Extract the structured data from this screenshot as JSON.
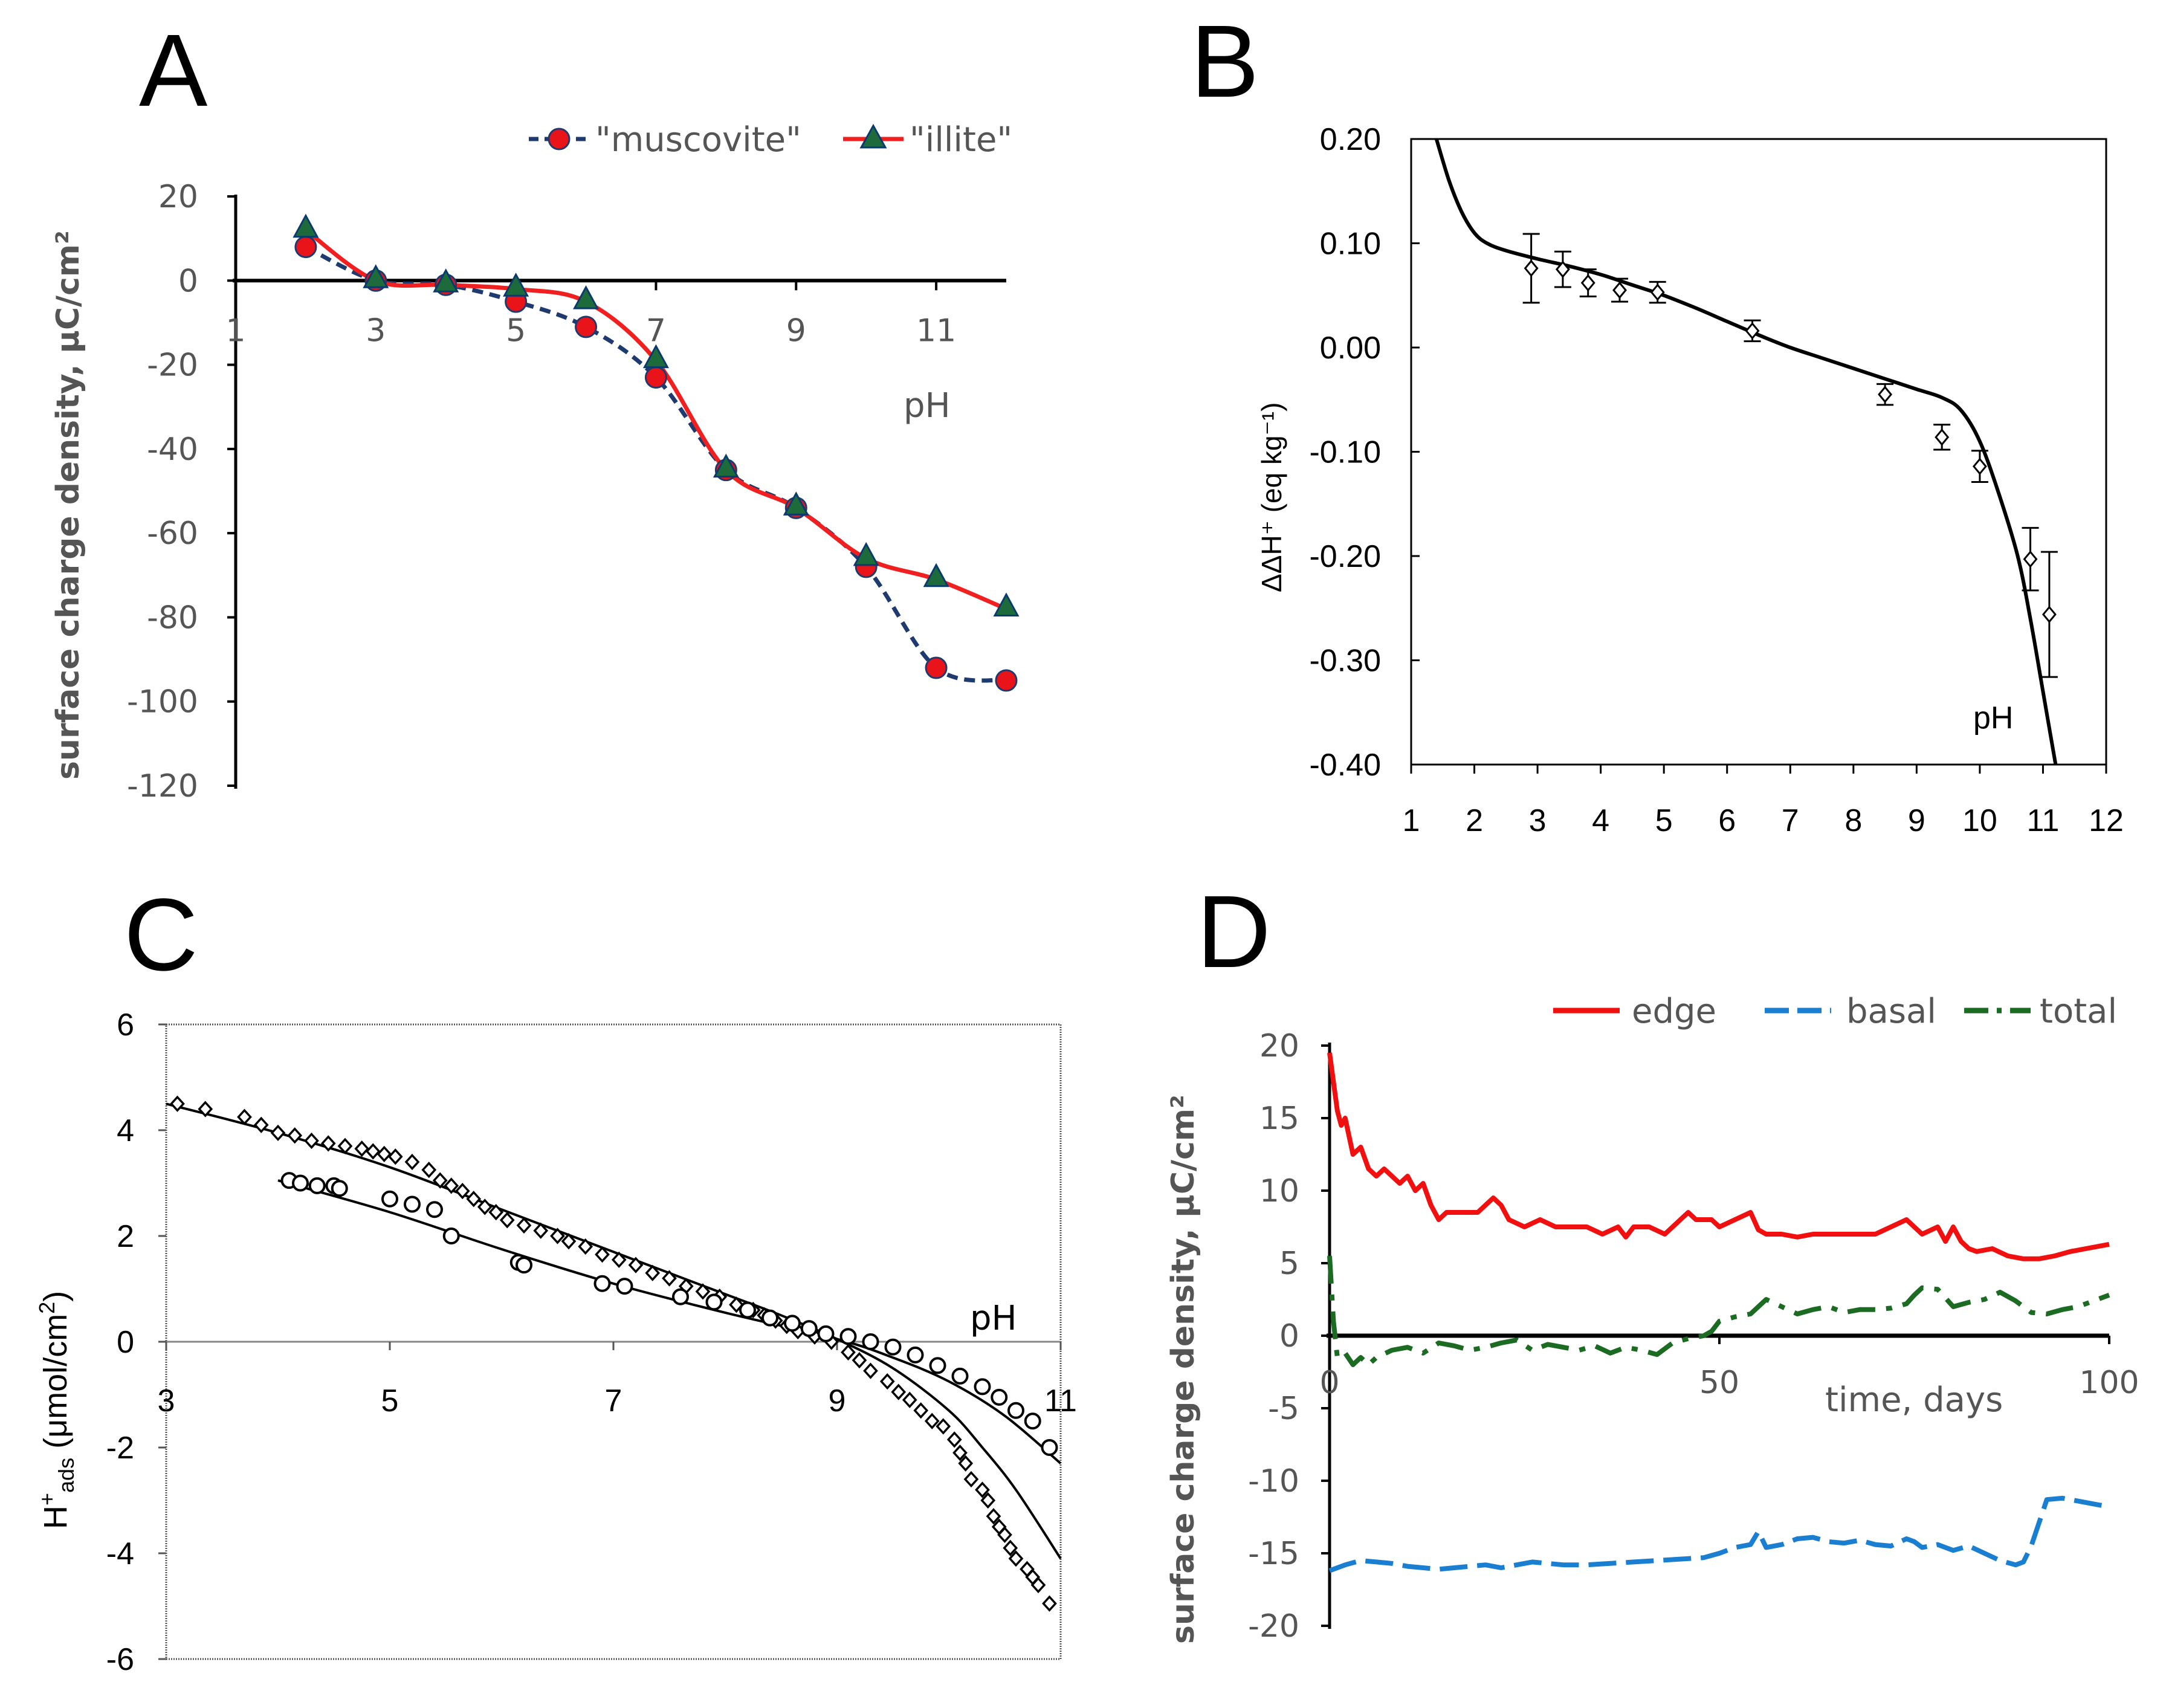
{
  "panels": {
    "A": {
      "letter": "A"
    },
    "B": {
      "letter": "B"
    },
    "C": {
      "letter": "C"
    },
    "D": {
      "letter": "D"
    }
  },
  "chart_data": [
    {
      "id": "A",
      "type": "line",
      "title": "",
      "xlabel": "pH",
      "ylabel": "surface charge density, μC/cm²",
      "xlim": [
        1,
        12
      ],
      "ylim": [
        -120,
        20
      ],
      "xticks": [
        1,
        3,
        5,
        7,
        9,
        11
      ],
      "yticks": [
        20,
        0,
        -20,
        -40,
        -60,
        -80,
        -100,
        -120
      ],
      "ytick_labels": [
        "20",
        "0",
        "-20",
        "-40",
        "-60",
        "-80",
        "-100",
        "-120"
      ],
      "legend_position": "top-right",
      "series": [
        {
          "name": "\"muscovite\"",
          "color": "#1f3a6e",
          "marker_color": "#e8141a",
          "marker": "circle",
          "style": "dashed",
          "x": [
            2,
            3,
            4,
            5,
            6,
            7,
            8,
            9,
            10,
            11,
            12
          ],
          "y": [
            8,
            0,
            -1,
            -5,
            -11,
            -23,
            -45,
            -54,
            -68,
            -92,
            -95
          ]
        },
        {
          "name": "\"illite\"",
          "color": "#f02020",
          "marker_color": "#1d6b3a",
          "marker": "triangle",
          "style": "solid",
          "x": [
            2,
            3,
            4,
            5,
            6,
            7,
            8,
            9,
            10,
            11,
            12
          ],
          "y": [
            12,
            0,
            -1,
            -2,
            -5,
            -19,
            -45,
            -54,
            -66,
            -71,
            -78
          ]
        }
      ]
    },
    {
      "id": "B",
      "type": "line",
      "xlabel": "pH",
      "ylabel": "ΔΔH⁺ (eq kg⁻¹)",
      "xlim": [
        1,
        12
      ],
      "ylim": [
        -0.4,
        0.2
      ],
      "xticks": [
        1,
        2,
        3,
        4,
        5,
        6,
        7,
        8,
        9,
        10,
        11,
        12
      ],
      "yticks": [
        0.2,
        0.1,
        0.0,
        -0.1,
        -0.2,
        -0.3,
        -0.4
      ],
      "ytick_labels": [
        "0.20",
        "0.10",
        "0.00",
        "-0.10",
        "-0.20",
        "-0.30",
        "-0.40"
      ],
      "model_curve": {
        "x": [
          1.4,
          1.6,
          1.8,
          2.0,
          2.2,
          2.5,
          3.0,
          3.5,
          4.0,
          4.5,
          5.0,
          5.5,
          6.0,
          6.5,
          7.0,
          7.5,
          8.0,
          8.5,
          9.0,
          9.4,
          9.7,
          10.0,
          10.3,
          10.6,
          10.8,
          11.0,
          11.2
        ],
        "y": [
          0.2,
          0.16,
          0.13,
          0.11,
          0.1,
          0.093,
          0.085,
          0.078,
          0.07,
          0.06,
          0.05,
          0.038,
          0.025,
          0.012,
          0.0,
          -0.01,
          -0.02,
          -0.03,
          -0.04,
          -0.048,
          -0.06,
          -0.09,
          -0.14,
          -0.2,
          -0.26,
          -0.33,
          -0.4
        ]
      },
      "points": {
        "x": [
          2.9,
          3.4,
          3.8,
          4.3,
          4.9,
          6.4,
          8.5,
          9.4,
          10.0,
          10.8,
          11.1
        ],
        "y": [
          0.076,
          0.075,
          0.062,
          0.055,
          0.053,
          0.016,
          -0.045,
          -0.086,
          -0.114,
          -0.203,
          -0.256
        ],
        "err": [
          0.033,
          0.017,
          0.013,
          0.011,
          0.01,
          0.01,
          0.01,
          0.012,
          0.015,
          0.03,
          0.06
        ]
      }
    },
    {
      "id": "C",
      "type": "scatter",
      "xlabel": "pH",
      "ylabel": "H⁺ads (μmol/cm²)",
      "ylabel_main": "H",
      "ylabel_sup": "+",
      "ylabel_sub": "ads",
      "ylabel_rest": " (μmol/cm",
      "ylabel_sup2": "2",
      "ylabel_close": ")",
      "xlim": [
        3,
        11
      ],
      "ylim": [
        -6,
        6
      ],
      "xticks": [
        3,
        5,
        7,
        9,
        11
      ],
      "yticks": [
        6,
        4,
        2,
        0,
        -2,
        -4,
        -6
      ],
      "ytick_labels": [
        "6",
        "4",
        "2",
        "0",
        "-2",
        "-4",
        "-6"
      ],
      "series": [
        {
          "name": "diamonds",
          "marker": "diamond",
          "x": [
            3.1,
            3.35,
            3.7,
            3.85,
            4.0,
            4.15,
            4.3,
            4.45,
            4.6,
            4.75,
            4.85,
            4.95,
            5.05,
            5.2,
            5.35,
            5.45,
            5.55,
            5.65,
            5.75,
            5.85,
            5.95,
            6.05,
            6.2,
            6.35,
            6.5,
            6.6,
            6.75,
            6.9,
            7.05,
            7.2,
            7.35,
            7.5,
            7.65,
            7.8,
            7.95,
            8.1,
            8.25,
            8.35,
            8.45,
            8.55,
            8.65,
            8.8,
            8.95,
            9.1,
            9.2,
            9.3,
            9.45,
            9.55,
            9.65,
            9.75,
            9.85,
            9.95,
            10.05,
            10.1,
            10.15,
            10.2,
            10.3,
            10.35,
            10.4,
            10.45,
            10.5,
            10.55,
            10.6,
            10.7,
            10.75,
            10.8,
            10.9
          ],
          "y": [
            4.5,
            4.4,
            4.25,
            4.1,
            3.95,
            3.9,
            3.8,
            3.75,
            3.7,
            3.65,
            3.6,
            3.55,
            3.5,
            3.4,
            3.25,
            3.05,
            2.95,
            2.85,
            2.7,
            2.55,
            2.45,
            2.3,
            2.2,
            2.1,
            2.0,
            1.9,
            1.8,
            1.65,
            1.55,
            1.45,
            1.3,
            1.2,
            1.05,
            0.95,
            0.85,
            0.7,
            0.6,
            0.5,
            0.4,
            0.3,
            0.2,
            0.1,
            0.0,
            -0.2,
            -0.35,
            -0.55,
            -0.75,
            -0.95,
            -1.1,
            -1.3,
            -1.5,
            -1.6,
            -1.85,
            -2.1,
            -2.3,
            -2.6,
            -2.8,
            -3.0,
            -3.3,
            -3.5,
            -3.65,
            -3.9,
            -4.1,
            -4.3,
            -4.45,
            -4.6,
            -4.95
          ]
        },
        {
          "name": "circles",
          "marker": "circle",
          "x": [
            4.1,
            4.2,
            4.35,
            4.5,
            4.55,
            5.0,
            5.2,
            5.4,
            5.55,
            6.15,
            6.2,
            6.9,
            7.1,
            7.6,
            7.9,
            8.2,
            8.4,
            8.6,
            8.75,
            8.9,
            9.1,
            9.3,
            9.5,
            9.7,
            9.9,
            10.1,
            10.3,
            10.45,
            10.6,
            10.75,
            10.9
          ],
          "y": [
            3.05,
            3.0,
            2.95,
            2.95,
            2.9,
            2.7,
            2.6,
            2.5,
            2.0,
            1.5,
            1.45,
            1.1,
            1.05,
            0.85,
            0.75,
            0.6,
            0.45,
            0.35,
            0.25,
            0.15,
            0.1,
            0.0,
            -0.1,
            -0.25,
            -0.45,
            -0.65,
            -0.85,
            -1.05,
            -1.3,
            -1.5,
            -2.0
          ]
        }
      ],
      "fit_lines": [
        {
          "x": [
            3.0,
            4.0,
            5.0,
            6.0,
            7.0,
            8.0,
            8.5,
            9.0,
            9.5,
            10.0,
            10.3,
            10.6,
            11.0
          ],
          "y": [
            4.5,
            3.95,
            3.3,
            2.5,
            1.7,
            0.9,
            0.5,
            0.05,
            -0.5,
            -1.3,
            -2.0,
            -2.8,
            -4.1
          ]
        },
        {
          "x": [
            4.0,
            5.0,
            6.0,
            7.0,
            8.0,
            9.0,
            9.5,
            10.0,
            10.5,
            11.0
          ],
          "y": [
            3.05,
            2.45,
            1.75,
            1.1,
            0.55,
            0.05,
            -0.3,
            -0.75,
            -1.4,
            -2.3
          ]
        }
      ]
    },
    {
      "id": "D",
      "type": "line",
      "xlabel": "time, days",
      "ylabel": "surface charge density, μC/cm²",
      "xlim": [
        0,
        100
      ],
      "ylim": [
        -20,
        20
      ],
      "xticks": [
        0,
        50,
        100
      ],
      "yticks": [
        20,
        15,
        10,
        5,
        0,
        -5,
        -10,
        -15,
        -20
      ],
      "ytick_labels": [
        "20",
        "15",
        "10",
        "5",
        "0",
        "-5",
        "-10",
        "-15",
        "-20"
      ],
      "legend_position": "top-right",
      "series": [
        {
          "name": "edge",
          "color": "#f01010",
          "style": "solid",
          "x": [
            0,
            0.5,
            1,
            1.5,
            2,
            3,
            4,
            5,
            6,
            7,
            8,
            9,
            10,
            11,
            12,
            13,
            14,
            15,
            17,
            19,
            21,
            22,
            23,
            25,
            27,
            29,
            31,
            33,
            35,
            37,
            38,
            39,
            41,
            43,
            45,
            46,
            47,
            49,
            50,
            52,
            54,
            55,
            56,
            58,
            60,
            62,
            65,
            68,
            70,
            72,
            74,
            75,
            76,
            78,
            79,
            80,
            81,
            82,
            83,
            85,
            87,
            89,
            91,
            93,
            95,
            97,
            100
          ],
          "y": [
            19.5,
            17.5,
            15.5,
            14.5,
            15.0,
            12.5,
            13.0,
            11.5,
            11.0,
            11.5,
            11.0,
            10.5,
            11.0,
            10.0,
            10.5,
            9.0,
            8.0,
            8.5,
            8.5,
            8.5,
            9.5,
            9.0,
            8.0,
            7.5,
            8.0,
            7.5,
            7.5,
            7.5,
            7.0,
            7.5,
            6.8,
            7.5,
            7.5,
            7.0,
            8.0,
            8.5,
            8.0,
            8.0,
            7.5,
            8.0,
            8.5,
            7.3,
            7.0,
            7.0,
            6.8,
            7.0,
            7.0,
            7.0,
            7.0,
            7.5,
            8.0,
            7.5,
            7.0,
            7.5,
            6.5,
            7.5,
            6.5,
            6.0,
            5.8,
            6.0,
            5.5,
            5.3,
            5.3,
            5.5,
            5.8,
            6.0,
            6.3
          ]
        },
        {
          "name": "basal",
          "color": "#1a7fd0",
          "style": "dashed",
          "x": [
            0,
            2,
            4,
            6,
            8,
            10,
            12,
            14,
            16,
            18,
            20,
            22,
            24,
            26,
            28,
            30,
            33,
            36,
            39,
            42,
            45,
            48,
            50,
            52,
            54,
            55,
            56,
            58,
            60,
            62,
            64,
            66,
            68,
            70,
            72,
            74,
            75,
            76,
            78,
            80,
            82,
            84,
            86,
            88,
            89,
            90,
            92,
            94,
            96,
            98,
            100
          ],
          "y": [
            -16.2,
            -15.8,
            -15.5,
            -15.6,
            -15.7,
            -15.9,
            -16.0,
            -16.1,
            -16.0,
            -15.9,
            -15.8,
            -16.0,
            -15.8,
            -15.6,
            -15.7,
            -15.8,
            -15.8,
            -15.7,
            -15.6,
            -15.5,
            -15.4,
            -15.3,
            -15.0,
            -14.6,
            -14.4,
            -13.5,
            -14.6,
            -14.4,
            -14.0,
            -13.9,
            -14.2,
            -14.3,
            -14.1,
            -14.4,
            -14.5,
            -14.0,
            -14.2,
            -14.6,
            -14.4,
            -14.8,
            -14.5,
            -15.0,
            -15.5,
            -15.8,
            -15.6,
            -14.5,
            -11.3,
            -11.2,
            -11.4,
            -11.6,
            -11.8
          ]
        },
        {
          "name": "total",
          "color": "#1c6b22",
          "style": "dashdot",
          "x": [
            0,
            0.5,
            1,
            2,
            3,
            4,
            5,
            6,
            8,
            10,
            12,
            14,
            16,
            18,
            20,
            22,
            24,
            26,
            28,
            30,
            32,
            34,
            36,
            38,
            40,
            42,
            44,
            46,
            47,
            48,
            49,
            50,
            52,
            54,
            56,
            58,
            60,
            62,
            64,
            66,
            68,
            70,
            72,
            74,
            75,
            76,
            78,
            80,
            82,
            84,
            86,
            88,
            90,
            92,
            94,
            96,
            98,
            100
          ],
          "y": [
            5.5,
            1.0,
            -1.5,
            -1.2,
            -2.0,
            -1.5,
            -2.0,
            -1.5,
            -1.0,
            -0.8,
            -1.2,
            -0.5,
            -0.7,
            -1.0,
            -0.8,
            -0.5,
            -0.3,
            -1.0,
            -0.6,
            -0.8,
            -1.0,
            -0.7,
            -1.2,
            -0.8,
            -1.0,
            -1.3,
            -0.5,
            -0.2,
            -0.1,
            0.0,
            0.3,
            1.0,
            1.3,
            1.5,
            2.5,
            2.0,
            1.5,
            1.8,
            2.0,
            1.6,
            1.8,
            1.8,
            1.9,
            2.2,
            2.8,
            3.3,
            3.2,
            2.0,
            2.3,
            2.5,
            3.0,
            2.4,
            1.6,
            1.5,
            1.8,
            2.0,
            2.4,
            2.8
          ]
        }
      ]
    }
  ]
}
